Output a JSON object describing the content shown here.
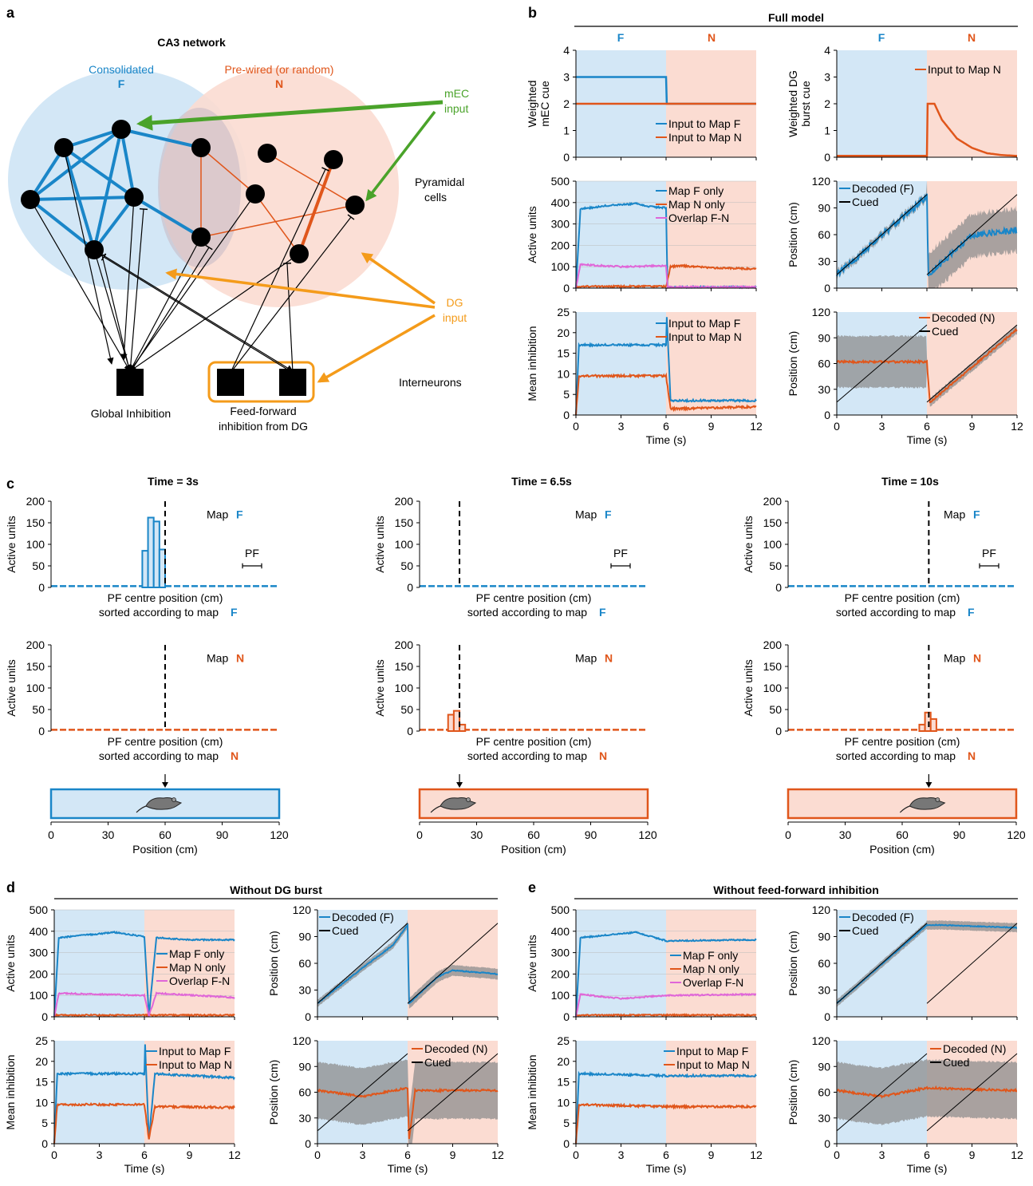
{
  "panel_labels": [
    "a",
    "b",
    "c",
    "d",
    "e"
  ],
  "colors": {
    "blue": "#1a86c8",
    "orange": "#e0561b",
    "pink": "#e066d8",
    "green": "#4aa32a",
    "gold": "#f49b1a",
    "gray": "#9b9b9b",
    "bgF": "#d3e7f6",
    "bgN": "#fbdcd2",
    "black": "#000000"
  },
  "panel_a": {
    "title": "CA3 network",
    "consolidated": "Consolidated",
    "map_f": "F",
    "prewired": "Pre-wired (or random)",
    "map_n": "N",
    "mec_line1": "mEC",
    "mec_line2": "input",
    "pyr_line1": "Pyramidal",
    "pyr_line2": "cells",
    "dg_line1": "DG",
    "dg_line2": "input",
    "interneurons": "Interneurons",
    "global_inhibition": "Global Inhibition",
    "ff_line1": "Feed-forward",
    "ff_line2": "inhibition from DG"
  },
  "headers": {
    "b": "Full model",
    "d": "Without DG burst",
    "e": "Without feed-forward inhibition"
  },
  "text": {
    "time_s": "Time (s)",
    "pos_cm": "Position (cm)",
    "position_cm": "Position (cm)",
    "active_units": "Active units",
    "mean_inhibition": "Mean inhibition",
    "w_mec_1": "Weighted",
    "w_mec_2": "mEC cue",
    "w_dg_1": "Weighted DG",
    "w_dg_2": "burst cue",
    "F": "F",
    "N": "N",
    "map": "Map",
    "pf": "PF",
    "pf_centre": "PF centre position (cm)",
    "sorted_by": "sorted according to map"
  },
  "legends": {
    "input_f": "Input to Map F",
    "input_n": "Input to Map N",
    "map_f_only": "Map F only",
    "map_n_only": "Map N only",
    "overlap": "Overlap F-N",
    "decoded_f": "Decoded (F)",
    "decoded_n": "Decoded (N)",
    "cued": "Cued"
  },
  "time_titles": [
    "Time = 3s",
    "Time = 6.5s",
    "Time = 10s"
  ],
  "chart_data": [
    {
      "id": "b1",
      "type": "line",
      "xlabel": "Time (s)",
      "ylabel": "Weighted mEC cue",
      "xlim": [
        0,
        12
      ],
      "ylim": [
        0,
        4
      ],
      "xticks": [
        0,
        3,
        6,
        9,
        12
      ],
      "yticks": [
        0,
        1,
        2,
        3,
        4
      ],
      "series": [
        {
          "name": "Input to Map F",
          "x": [
            0,
            6,
            6,
            12
          ],
          "y": [
            3,
            3,
            2,
            2
          ]
        },
        {
          "name": "Input to Map N",
          "x": [
            0,
            12
          ],
          "y": [
            2,
            2
          ]
        }
      ]
    },
    {
      "id": "b2",
      "type": "line",
      "xlabel": "Time (s)",
      "ylabel": "Weighted DG burst cue",
      "xlim": [
        0,
        12
      ],
      "ylim": [
        0,
        4
      ],
      "xticks": [
        0,
        3,
        6,
        9,
        12
      ],
      "yticks": [
        0,
        1,
        2,
        3,
        4
      ],
      "series": [
        {
          "name": "Input to Map N",
          "x": [
            0,
            6,
            6,
            6.5,
            7,
            8,
            9,
            10,
            11,
            12
          ],
          "y": [
            0.05,
            0.05,
            2,
            2,
            1.4,
            0.7,
            0.35,
            0.15,
            0.08,
            0.05
          ]
        }
      ]
    },
    {
      "id": "b3",
      "type": "line",
      "xlabel": "Time (s)",
      "ylabel": "Active units",
      "xlim": [
        0,
        12
      ],
      "ylim": [
        0,
        500
      ],
      "xticks": [
        0,
        3,
        6,
        9,
        12
      ],
      "yticks": [
        0,
        100,
        200,
        300,
        400,
        500
      ],
      "series": [
        {
          "name": "Map F only",
          "x": [
            0,
            0.3,
            2,
            4,
            5,
            6,
            6.1,
            12
          ],
          "y": [
            0,
            370,
            385,
            395,
            380,
            375,
            5,
            5
          ]
        },
        {
          "name": "Map N only",
          "x": [
            0,
            6,
            6.3,
            7,
            9,
            12
          ],
          "y": [
            8,
            8,
            100,
            105,
            95,
            90
          ]
        },
        {
          "name": "Overlap F-N",
          "x": [
            0,
            0.3,
            3,
            6,
            6.1,
            12
          ],
          "y": [
            0,
            110,
            100,
            105,
            5,
            5
          ]
        }
      ]
    },
    {
      "id": "b4",
      "type": "line",
      "xlabel": "Time (s)",
      "ylabel": "Position (cm)",
      "xlim": [
        0,
        12
      ],
      "ylim": [
        0,
        120
      ],
      "xticks": [
        0,
        3,
        6,
        9,
        12
      ],
      "yticks": [
        0,
        30,
        60,
        90,
        120
      ],
      "series": [
        {
          "name": "Decoded (F)",
          "x": [
            0,
            6,
            6.1,
            9,
            12
          ],
          "y": [
            15,
            103,
            15,
            60,
            65
          ]
        },
        {
          "name": "Cued",
          "x": [
            0,
            6,
            6,
            12
          ],
          "y": [
            15,
            105,
            15,
            105
          ]
        }
      ]
    },
    {
      "id": "b5",
      "type": "line",
      "xlabel": "Time (s)",
      "ylabel": "Mean inhibition",
      "xlim": [
        0,
        12
      ],
      "ylim": [
        0,
        25
      ],
      "xticks": [
        0,
        3,
        6,
        9,
        12
      ],
      "yticks": [
        0,
        5,
        10,
        15,
        20,
        25
      ],
      "series": [
        {
          "name": "Input to Map F",
          "x": [
            0,
            0.2,
            6,
            6.05,
            6.3,
            12
          ],
          "y": [
            0,
            17,
            17,
            24,
            3.5,
            3.5
          ]
        },
        {
          "name": "Input to Map N",
          "x": [
            0,
            0.2,
            6,
            6.3,
            12
          ],
          "y": [
            0,
            9.5,
            9.5,
            1.5,
            2
          ]
        }
      ]
    },
    {
      "id": "b6",
      "type": "line",
      "xlabel": "Time (s)",
      "ylabel": "Position (cm)",
      "xlim": [
        0,
        12
      ],
      "ylim": [
        0,
        120
      ],
      "xticks": [
        0,
        3,
        6,
        9,
        12
      ],
      "yticks": [
        0,
        30,
        60,
        90,
        120
      ],
      "series": [
        {
          "name": "Decoded (N)",
          "x": [
            0,
            6,
            6.2,
            12
          ],
          "y": [
            62,
            62,
            15,
            100
          ]
        },
        {
          "name": "Cued",
          "x": [
            0,
            6,
            6,
            12
          ],
          "y": [
            15,
            105,
            15,
            105
          ]
        }
      ]
    },
    {
      "id": "c",
      "type": "bar",
      "xlabel": "Position (cm)",
      "ylabel": "Active units",
      "xlim": [
        0,
        120
      ],
      "ylim": [
        0,
        200
      ],
      "xticks": [
        0,
        30,
        60,
        90,
        120
      ],
      "yticks": [
        0,
        50,
        100,
        150,
        200
      ],
      "times": [
        "Time = 3s",
        "Time = 6.5s",
        "Time = 10s"
      ],
      "cue_positions": [
        60,
        21,
        74
      ],
      "map_f_bars": [
        [
          [
            48,
            85
          ],
          [
            51,
            162
          ],
          [
            54,
            153
          ],
          [
            57,
            88
          ]
        ],
        [],
        []
      ],
      "map_n_bars": [
        [],
        [
          [
            15,
            38
          ],
          [
            18,
            47
          ],
          [
            21,
            15
          ]
        ],
        [
          [
            69,
            15
          ],
          [
            72,
            43
          ],
          [
            75,
            28
          ]
        ]
      ]
    },
    {
      "id": "d1",
      "type": "line",
      "xlabel": "Time (s)",
      "ylabel": "Active units",
      "xlim": [
        0,
        12
      ],
      "ylim": [
        0,
        500
      ],
      "xticks": [
        0,
        3,
        6,
        9,
        12
      ],
      "yticks": [
        0,
        100,
        200,
        300,
        400,
        500
      ],
      "series": [
        {
          "name": "Map F only",
          "x": [
            0,
            0.3,
            4,
            6,
            6.3,
            6.8,
            9,
            12
          ],
          "y": [
            0,
            370,
            395,
            375,
            5,
            370,
            360,
            360
          ]
        },
        {
          "name": "Map N only",
          "x": [
            0,
            12
          ],
          "y": [
            8,
            8
          ]
        },
        {
          "name": "Overlap F-N",
          "x": [
            0,
            0.3,
            6,
            6.3,
            6.8,
            12
          ],
          "y": [
            0,
            110,
            100,
            5,
            110,
            90
          ]
        }
      ]
    },
    {
      "id": "d2",
      "type": "line",
      "xlabel": "Time (s)",
      "ylabel": "Position (cm)",
      "xlim": [
        0,
        12
      ],
      "ylim": [
        0,
        120
      ],
      "xticks": [
        0,
        3,
        6,
        9,
        12
      ],
      "yticks": [
        0,
        30,
        60,
        90,
        120
      ],
      "series": [
        {
          "name": "Decoded (F)",
          "x": [
            0,
            3,
            5,
            6,
            6.1,
            8,
            9,
            12
          ],
          "y": [
            15,
            55,
            80,
            103,
            15,
            45,
            52,
            48
          ]
        },
        {
          "name": "Cued",
          "x": [
            0,
            6,
            6,
            12
          ],
          "y": [
            15,
            105,
            15,
            105
          ]
        }
      ]
    },
    {
      "id": "d3",
      "type": "line",
      "xlabel": "Time (s)",
      "ylabel": "Mean inhibition",
      "xlim": [
        0,
        12
      ],
      "ylim": [
        0,
        25
      ],
      "xticks": [
        0,
        3,
        6,
        9,
        12
      ],
      "yticks": [
        0,
        5,
        10,
        15,
        20,
        25
      ],
      "series": [
        {
          "name": "Input to Map F",
          "x": [
            0,
            0.2,
            6,
            6.05,
            6.3,
            6.7,
            12
          ],
          "y": [
            0,
            17,
            17,
            24,
            1,
            17,
            16
          ]
        },
        {
          "name": "Input to Map N",
          "x": [
            0,
            0.2,
            6,
            6.3,
            6.7,
            12
          ],
          "y": [
            0,
            9.5,
            9.5,
            1,
            9,
            8.8
          ]
        }
      ]
    },
    {
      "id": "d4",
      "type": "line",
      "xlabel": "Time (s)",
      "ylabel": "Position (cm)",
      "xlim": [
        0,
        12
      ],
      "ylim": [
        0,
        120
      ],
      "xticks": [
        0,
        3,
        6,
        9,
        12
      ],
      "yticks": [
        0,
        30,
        60,
        90,
        120
      ],
      "series": [
        {
          "name": "Decoded (N)",
          "x": [
            0,
            3,
            6,
            6.1,
            6.5,
            12
          ],
          "y": [
            62,
            55,
            65,
            5,
            62,
            62
          ]
        },
        {
          "name": "Cued",
          "x": [
            0,
            6,
            6,
            12
          ],
          "y": [
            15,
            105,
            15,
            105
          ]
        }
      ]
    },
    {
      "id": "e1",
      "type": "line",
      "xlabel": "Time (s)",
      "ylabel": "Active units",
      "xlim": [
        0,
        12
      ],
      "ylim": [
        0,
        500
      ],
      "xticks": [
        0,
        3,
        6,
        9,
        12
      ],
      "yticks": [
        0,
        100,
        200,
        300,
        400,
        500
      ],
      "series": [
        {
          "name": "Map F only",
          "x": [
            0,
            0.3,
            4,
            6,
            12
          ],
          "y": [
            0,
            370,
            395,
            355,
            360
          ]
        },
        {
          "name": "Map N only",
          "x": [
            0,
            12
          ],
          "y": [
            8,
            8
          ]
        },
        {
          "name": "Overlap F-N",
          "x": [
            0,
            0.3,
            3,
            6,
            12
          ],
          "y": [
            0,
            105,
            85,
            100,
            105
          ]
        }
      ]
    },
    {
      "id": "e2",
      "type": "line",
      "xlabel": "Time (s)",
      "ylabel": "Position (cm)",
      "xlim": [
        0,
        12
      ],
      "ylim": [
        0,
        120
      ],
      "xticks": [
        0,
        3,
        6,
        9,
        12
      ],
      "yticks": [
        0,
        30,
        60,
        90,
        120
      ],
      "series": [
        {
          "name": "Decoded (F)",
          "x": [
            0,
            6,
            7,
            12
          ],
          "y": [
            15,
            103,
            103,
            100
          ]
        },
        {
          "name": "Cued",
          "x": [
            0,
            6,
            6,
            12
          ],
          "y": [
            15,
            105,
            15,
            105
          ]
        }
      ]
    },
    {
      "id": "e3",
      "type": "line",
      "xlabel": "Time (s)",
      "ylabel": "Mean inhibition",
      "xlim": [
        0,
        12
      ],
      "ylim": [
        0,
        25
      ],
      "xticks": [
        0,
        3,
        6,
        9,
        12
      ],
      "yticks": [
        0,
        5,
        10,
        15,
        20,
        25
      ],
      "series": [
        {
          "name": "Input to Map F",
          "x": [
            0,
            0.2,
            6,
            12
          ],
          "y": [
            0,
            17,
            16.5,
            16.5
          ]
        },
        {
          "name": "Input to Map N",
          "x": [
            0,
            0.2,
            6,
            12
          ],
          "y": [
            0,
            9.5,
            9,
            9
          ]
        }
      ]
    },
    {
      "id": "e4",
      "type": "line",
      "xlabel": "Time (s)",
      "ylabel": "Position (cm)",
      "xlim": [
        0,
        12
      ],
      "ylim": [
        0,
        120
      ],
      "xticks": [
        0,
        3,
        6,
        9,
        12
      ],
      "yticks": [
        0,
        30,
        60,
        90,
        120
      ],
      "series": [
        {
          "name": "Decoded (N)",
          "x": [
            0,
            3,
            6,
            12
          ],
          "y": [
            62,
            55,
            65,
            62
          ]
        },
        {
          "name": "Cued",
          "x": [
            0,
            6,
            6,
            12
          ],
          "y": [
            15,
            105,
            15,
            105
          ]
        }
      ]
    }
  ]
}
